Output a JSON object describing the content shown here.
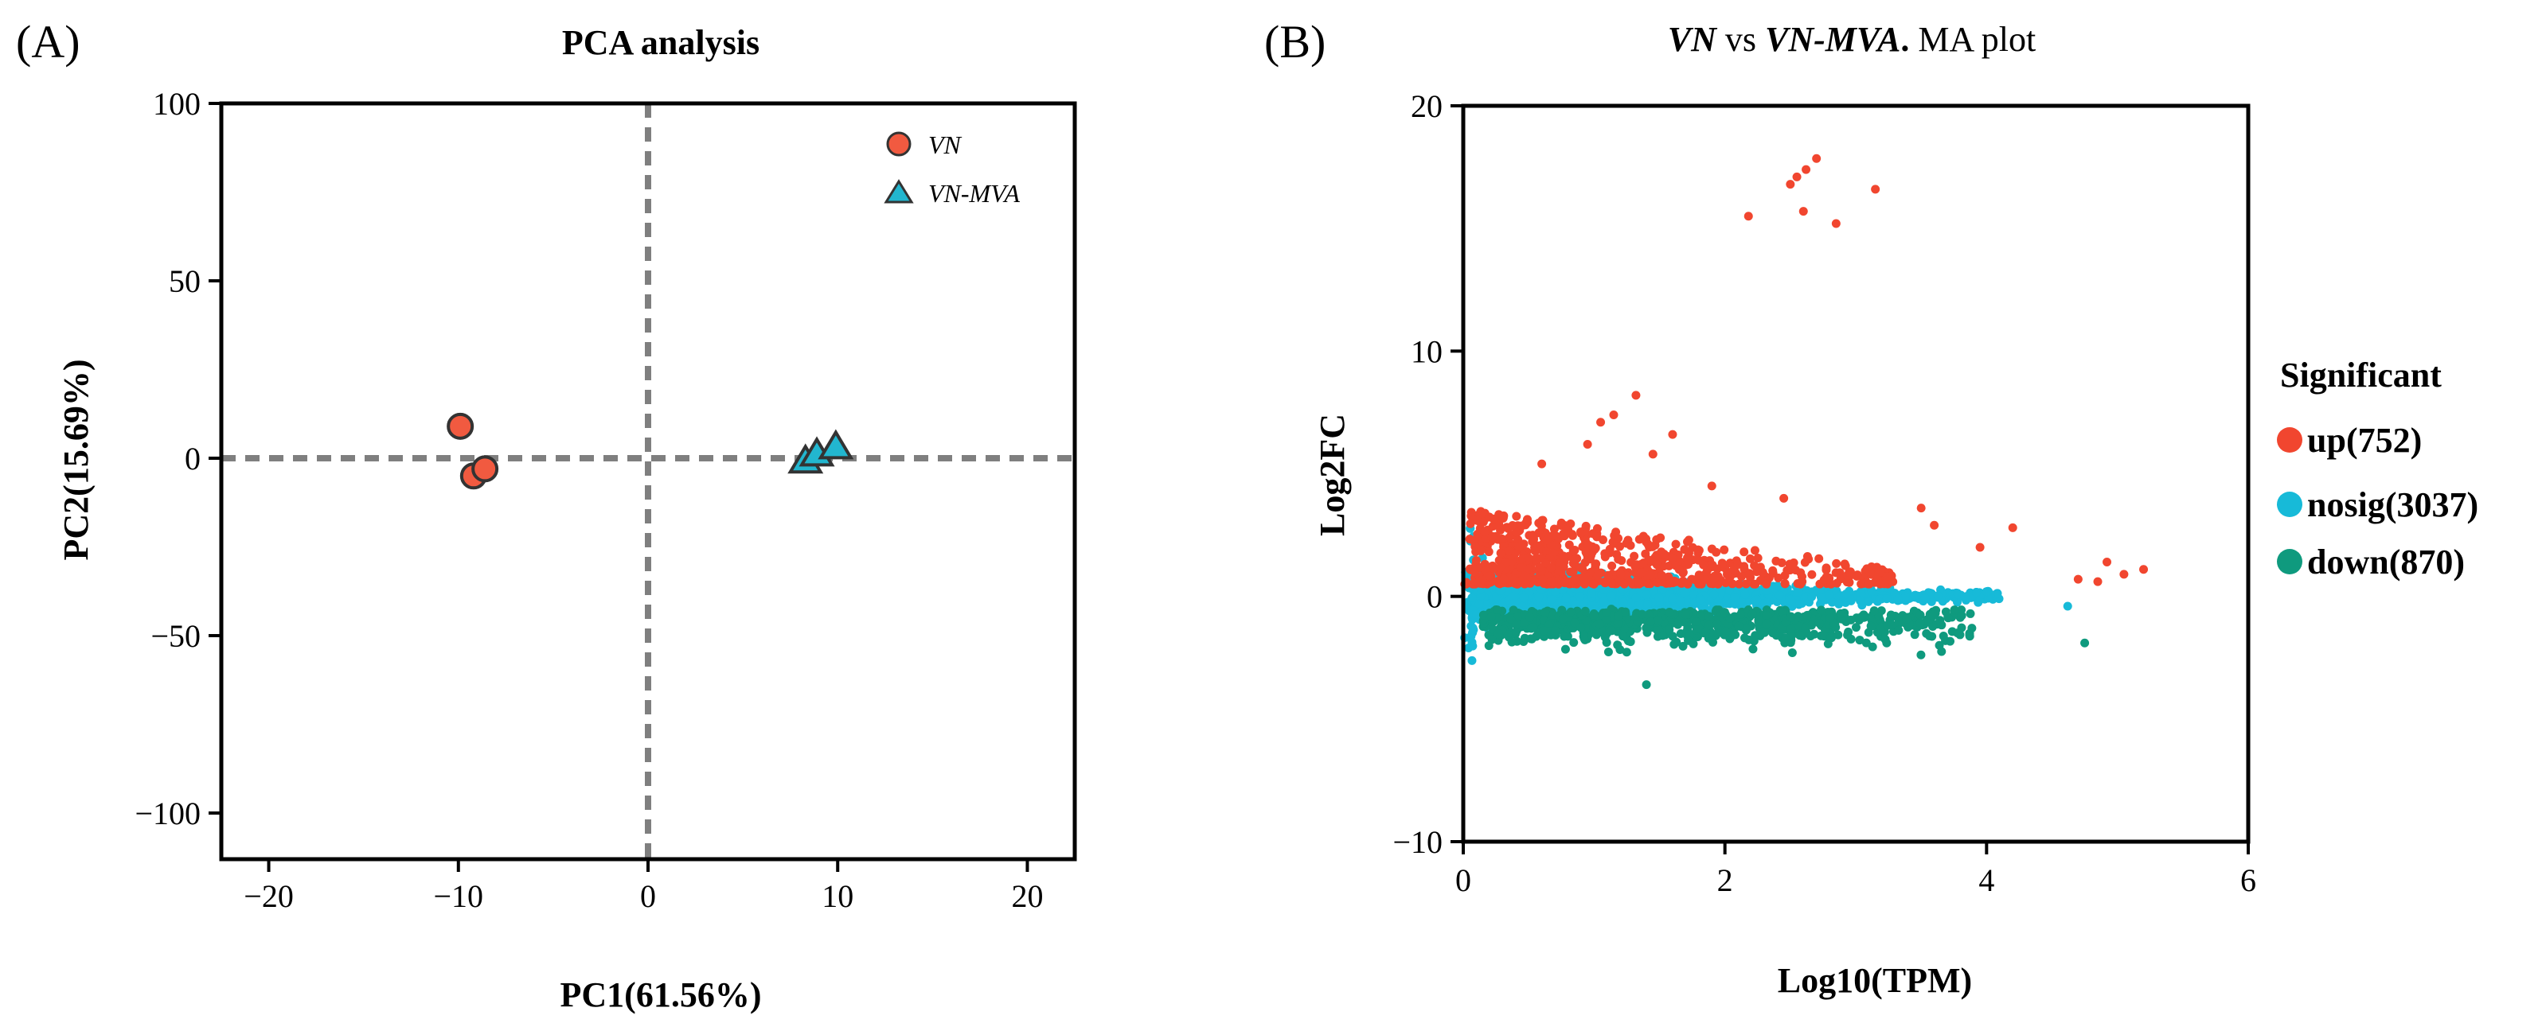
{
  "chart_data": [
    {
      "panel_label": "(A)",
      "type": "scatter",
      "title": "PCA analysis",
      "xlabel": "PC1(61.56%)",
      "ylabel": "PC2(15.69%)",
      "xlim": [
        -22.5,
        22.5
      ],
      "ylim": [
        -113,
        100
      ],
      "xticks": [
        -20,
        -10,
        0,
        10,
        20
      ],
      "yticks": [
        100,
        50,
        0,
        -50,
        -100
      ],
      "xtick_labels": [
        "−20",
        "−10",
        "0",
        "10",
        "20"
      ],
      "ytick_labels": [
        "100",
        "50",
        "0",
        "−50",
        "−100"
      ],
      "reference_lines": {
        "x": 0,
        "y": 0
      },
      "legend_position": "top-right",
      "series": [
        {
          "name": "VN",
          "marker": "circle",
          "color": "#f15a40",
          "points": [
            {
              "x": -9.9,
              "y": 9
            },
            {
              "x": -9.2,
              "y": -5
            },
            {
              "x": -8.6,
              "y": -3
            }
          ]
        },
        {
          "name": "VN-MVA",
          "marker": "triangle",
          "color": "#22b6cf",
          "points": [
            {
              "x": 8.3,
              "y": -1
            },
            {
              "x": 8.9,
              "y": 1
            },
            {
              "x": 9.9,
              "y": 3
            }
          ]
        }
      ]
    },
    {
      "panel_label": "(B)",
      "type": "scatter",
      "title": {
        "part1": "VN",
        "part2": " vs ",
        "part3": "VN-MVA",
        "part4": ".",
        "part5": " MA plot"
      },
      "xlabel": "Log10(TPM)",
      "ylabel": "Log2FC",
      "xlim": [
        0,
        6
      ],
      "ylim": [
        -10,
        20
      ],
      "xticks": [
        0,
        2,
        4,
        6
      ],
      "yticks": [
        20,
        10,
        0,
        -10
      ],
      "xtick_labels": [
        "0",
        "2",
        "4",
        "6"
      ],
      "ytick_labels": [
        "20",
        "10",
        "0",
        "−10"
      ],
      "legend_title": "Significant",
      "legend_position": "right",
      "series": [
        {
          "key": "up",
          "name": "up(752)",
          "count": 752,
          "color": "#f1462f"
        },
        {
          "key": "nosig",
          "name": "nosig(3037)",
          "count": 3037,
          "color": "#17bad8"
        },
        {
          "key": "down",
          "name": "down(870)",
          "count": 870,
          "color": "#0f9a7e"
        }
      ],
      "notable_points": [
        {
          "x": 2.18,
          "y": 15.5
        },
        {
          "x": 2.5,
          "y": 16.8
        },
        {
          "x": 2.55,
          "y": 17.1
        },
        {
          "x": 2.62,
          "y": 17.4
        },
        {
          "x": 2.7,
          "y": 17.85
        },
        {
          "x": 2.6,
          "y": 15.7
        },
        {
          "x": 2.85,
          "y": 15.2
        },
        {
          "x": 3.15,
          "y": 16.6
        },
        {
          "x": 1.32,
          "y": 8.2
        },
        {
          "x": 1.15,
          "y": 7.4
        },
        {
          "x": 1.05,
          "y": 7.1
        },
        {
          "x": 0.95,
          "y": 6.2
        },
        {
          "x": 1.6,
          "y": 6.6
        },
        {
          "x": 1.45,
          "y": 5.8
        },
        {
          "x": 0.6,
          "y": 5.4
        },
        {
          "x": 1.9,
          "y": 4.5
        },
        {
          "x": 2.45,
          "y": 4.0
        },
        {
          "x": 3.5,
          "y": 3.6
        },
        {
          "x": 3.6,
          "y": 2.9
        },
        {
          "x": 4.2,
          "y": 2.8
        },
        {
          "x": 3.95,
          "y": 2.0
        },
        {
          "x": 4.7,
          "y": 0.7
        },
        {
          "x": 4.85,
          "y": 0.6
        },
        {
          "x": 4.92,
          "y": 1.4
        },
        {
          "x": 5.05,
          "y": 0.9
        },
        {
          "x": 5.2,
          "y": 1.1
        },
        {
          "x": 4.62,
          "y": -0.4
        },
        {
          "x": 4.75,
          "y": -1.9
        },
        {
          "x": 1.4,
          "y": -3.6
        }
      ]
    }
  ]
}
